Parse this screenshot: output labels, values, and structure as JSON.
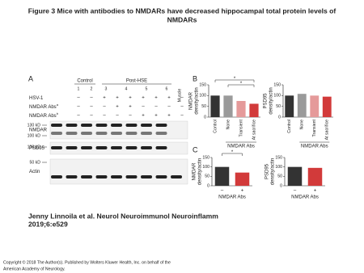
{
  "header": {
    "title": [
      "Figure 3 Mice with antibodies to NMDARs have decreased hippocampal total protein levels of",
      "NMDARs"
    ]
  },
  "panel_a": {
    "label": "A",
    "groups": [
      "Control",
      "Post-HSE"
    ],
    "lanes": [
      "1",
      "2",
      "3",
      "4",
      "5",
      "6"
    ],
    "muscle": "Muscle",
    "rows": [
      {
        "label": "HSV-1",
        "marks": [
          "–",
          "–",
          "+",
          "+",
          "+",
          "+",
          "+",
          "+",
          "–"
        ]
      },
      {
        "label": "NMDAR Abs",
        "sup": "a",
        "marks": [
          "–",
          "–",
          "–",
          "+",
          "+",
          "–",
          "–",
          "–",
          "–"
        ]
      },
      {
        "label": "NMDAR Abs",
        "sup": "b",
        "marks": [
          "–",
          "–",
          "–",
          "–",
          "–",
          "+",
          "+",
          "+",
          "–"
        ]
      }
    ],
    "blots": [
      {
        "label": "NMDAR",
        "sizes": [
          "130 kD",
          "100 kD"
        ]
      },
      {
        "label": "PSD95",
        "sizes": [
          "100 kD"
        ]
      },
      {
        "label": "Actin",
        "sizes": [
          "50 kD"
        ]
      }
    ]
  },
  "panel_b": {
    "label": "B"
  },
  "panel_c": {
    "label": "C"
  },
  "chart_data": [
    {
      "type": "bar",
      "ylabel": [
        "NMDAR",
        "density/actin"
      ],
      "categories": [
        "Control",
        "None",
        "Transient",
        "At sacrifice"
      ],
      "values": [
        100,
        100,
        75,
        62
      ],
      "colors": [
        "#333333",
        "#9a9a9a",
        "#e59a9a",
        "#d23a3a"
      ],
      "ylim": [
        0,
        150
      ],
      "yticks": [
        0,
        50,
        100,
        150
      ],
      "group_label": "NMDAR Abs",
      "annotations": [
        "*",
        "*"
      ]
    },
    {
      "type": "bar",
      "ylabel": [
        "PSD95",
        "density/actin"
      ],
      "categories": [
        "Control",
        "None",
        "Transient",
        "At sacrifice"
      ],
      "values": [
        100,
        108,
        100,
        95
      ],
      "colors": [
        "#333333",
        "#9a9a9a",
        "#e59a9a",
        "#d23a3a"
      ],
      "ylim": [
        0,
        150
      ],
      "yticks": [
        0,
        50,
        100,
        150
      ],
      "group_label": "NMDAR Abs"
    },
    {
      "type": "bar",
      "ylabel": [
        "NMDAR",
        "density/actin"
      ],
      "categories": [
        "–",
        "+"
      ],
      "values": [
        100,
        70
      ],
      "colors": [
        "#333333",
        "#d23a3a"
      ],
      "ylim": [
        0,
        150
      ],
      "yticks": [
        0,
        50,
        100,
        150
      ],
      "group_label": "NMDAR Abs",
      "annotations": [
        "*"
      ]
    },
    {
      "type": "bar",
      "ylabel": [
        "PSD95",
        "density/actin"
      ],
      "categories": [
        "–",
        "+"
      ],
      "values": [
        100,
        95
      ],
      "colors": [
        "#333333",
        "#d23a3a"
      ],
      "ylim": [
        0,
        150
      ],
      "yticks": [
        0,
        50,
        100,
        150
      ],
      "group_label": "NMDAR Abs"
    }
  ],
  "footer": {
    "citation": [
      "Jenny Linnoila et al. Neurol Neuroimmunol Neuroinflamm",
      "2019;6:e529"
    ],
    "copyright": [
      "Copyright © 2018 The Author(s). Published by Wolters Kluwer Health, Inc. on behalf of the",
      "American Academy of Neurology."
    ]
  }
}
